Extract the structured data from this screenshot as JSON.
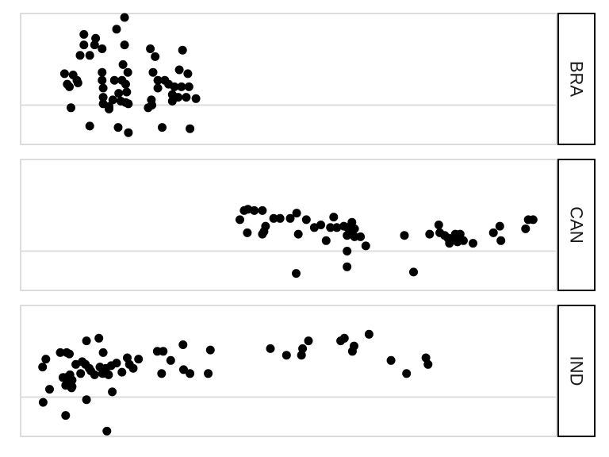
{
  "chart_data": {
    "type": "scatter",
    "title": "",
    "xlabel": "",
    "ylabel": "",
    "xlim": [
      0,
      100
    ],
    "ylim": [
      0,
      100
    ],
    "grid": true,
    "point_color": "#000000",
    "facets": [
      {
        "label": "BRA",
        "points": [
          {
            "x": 19.4,
            "y": 97
          },
          {
            "x": 17.9,
            "y": 88
          },
          {
            "x": 11.8,
            "y": 84
          },
          {
            "x": 14.0,
            "y": 81
          },
          {
            "x": 11.8,
            "y": 76
          },
          {
            "x": 13.8,
            "y": 76
          },
          {
            "x": 11.1,
            "y": 68
          },
          {
            "x": 12.9,
            "y": 68
          },
          {
            "x": 15.2,
            "y": 73
          },
          {
            "x": 19.4,
            "y": 76
          },
          {
            "x": 24.2,
            "y": 73
          },
          {
            "x": 30.2,
            "y": 72
          },
          {
            "x": 25.1,
            "y": 67
          },
          {
            "x": 8.2,
            "y": 54
          },
          {
            "x": 9.8,
            "y": 53
          },
          {
            "x": 10.5,
            "y": 49
          },
          {
            "x": 8.7,
            "y": 46
          },
          {
            "x": 9.1,
            "y": 44
          },
          {
            "x": 10.7,
            "y": 47
          },
          {
            "x": 15.2,
            "y": 55
          },
          {
            "x": 19.1,
            "y": 61
          },
          {
            "x": 20.0,
            "y": 55
          },
          {
            "x": 18.9,
            "y": 49
          },
          {
            "x": 17.5,
            "y": 49
          },
          {
            "x": 15.2,
            "y": 49
          },
          {
            "x": 15.4,
            "y": 43
          },
          {
            "x": 19.6,
            "y": 46
          },
          {
            "x": 24.7,
            "y": 55
          },
          {
            "x": 29.6,
            "y": 57
          },
          {
            "x": 31.2,
            "y": 54
          },
          {
            "x": 25.6,
            "y": 49
          },
          {
            "x": 26.9,
            "y": 49
          },
          {
            "x": 25.6,
            "y": 43
          },
          {
            "x": 27.6,
            "y": 46
          },
          {
            "x": 28.7,
            "y": 44
          },
          {
            "x": 30.0,
            "y": 44
          },
          {
            "x": 29.4,
            "y": 36
          },
          {
            "x": 31.4,
            "y": 44
          },
          {
            "x": 19.8,
            "y": 40
          },
          {
            "x": 18.3,
            "y": 39
          },
          {
            "x": 15.4,
            "y": 36
          },
          {
            "x": 15.4,
            "y": 31
          },
          {
            "x": 16.5,
            "y": 29
          },
          {
            "x": 16.5,
            "y": 27
          },
          {
            "x": 17.2,
            "y": 34
          },
          {
            "x": 18.7,
            "y": 33
          },
          {
            "x": 19.6,
            "y": 32
          },
          {
            "x": 20.1,
            "y": 31
          },
          {
            "x": 24.4,
            "y": 34
          },
          {
            "x": 24.5,
            "y": 30
          },
          {
            "x": 23.8,
            "y": 28
          },
          {
            "x": 28.3,
            "y": 33
          },
          {
            "x": 28.3,
            "y": 38
          },
          {
            "x": 30.9,
            "y": 36
          },
          {
            "x": 32.7,
            "y": 35
          },
          {
            "x": 9.4,
            "y": 28
          },
          {
            "x": 12.9,
            "y": 14
          },
          {
            "x": 18.2,
            "y": 13
          },
          {
            "x": 20.1,
            "y": 9
          },
          {
            "x": 26.4,
            "y": 13
          },
          {
            "x": 31.6,
            "y": 12
          }
        ]
      },
      {
        "label": "CAN",
        "points": [
          {
            "x": 41.7,
            "y": 61
          },
          {
            "x": 42.4,
            "y": 62
          },
          {
            "x": 43.6,
            "y": 61
          },
          {
            "x": 45.1,
            "y": 61
          },
          {
            "x": 40.9,
            "y": 54
          },
          {
            "x": 47.2,
            "y": 55
          },
          {
            "x": 48.4,
            "y": 55
          },
          {
            "x": 50.3,
            "y": 55
          },
          {
            "x": 51.5,
            "y": 59
          },
          {
            "x": 53.3,
            "y": 54
          },
          {
            "x": 56.0,
            "y": 50
          },
          {
            "x": 58.4,
            "y": 56
          },
          {
            "x": 57.8,
            "y": 48
          },
          {
            "x": 59.0,
            "y": 48
          },
          {
            "x": 61.8,
            "y": 52
          },
          {
            "x": 60.3,
            "y": 49
          },
          {
            "x": 61.0,
            "y": 48
          },
          {
            "x": 62.3,
            "y": 47
          },
          {
            "x": 61.4,
            "y": 44
          },
          {
            "x": 60.9,
            "y": 42
          },
          {
            "x": 62.3,
            "y": 41
          },
          {
            "x": 63.4,
            "y": 41
          },
          {
            "x": 57.0,
            "y": 38
          },
          {
            "x": 54.8,
            "y": 48
          },
          {
            "x": 51.8,
            "y": 43
          },
          {
            "x": 45.7,
            "y": 49
          },
          {
            "x": 45.1,
            "y": 43
          },
          {
            "x": 45.4,
            "y": 45
          },
          {
            "x": 42.3,
            "y": 44
          },
          {
            "x": 64.4,
            "y": 34
          },
          {
            "x": 60.9,
            "y": 30
          },
          {
            "x": 60.9,
            "y": 18
          },
          {
            "x": 51.4,
            "y": 13
          },
          {
            "x": 73.3,
            "y": 14
          },
          {
            "x": 71.6,
            "y": 42
          },
          {
            "x": 76.3,
            "y": 43
          },
          {
            "x": 78.0,
            "y": 50
          },
          {
            "x": 78.2,
            "y": 44
          },
          {
            "x": 79.1,
            "y": 42
          },
          {
            "x": 79.7,
            "y": 40
          },
          {
            "x": 80.6,
            "y": 40
          },
          {
            "x": 81.1,
            "y": 43
          },
          {
            "x": 82.0,
            "y": 43
          },
          {
            "x": 81.5,
            "y": 37
          },
          {
            "x": 82.6,
            "y": 38
          },
          {
            "x": 84.4,
            "y": 36
          },
          {
            "x": 80.0,
            "y": 36
          },
          {
            "x": 88.2,
            "y": 44
          },
          {
            "x": 89.4,
            "y": 49
          },
          {
            "x": 89.6,
            "y": 38
          },
          {
            "x": 94.2,
            "y": 47
          },
          {
            "x": 94.7,
            "y": 54
          },
          {
            "x": 95.6,
            "y": 54
          }
        ]
      },
      {
        "label": "IND",
        "points": [
          {
            "x": 4.7,
            "y": 59
          },
          {
            "x": 4.1,
            "y": 53
          },
          {
            "x": 7.4,
            "y": 64
          },
          {
            "x": 8.6,
            "y": 64
          },
          {
            "x": 9.1,
            "y": 63
          },
          {
            "x": 12.3,
            "y": 73
          },
          {
            "x": 14.6,
            "y": 75
          },
          {
            "x": 15.4,
            "y": 64
          },
          {
            "x": 11.5,
            "y": 57
          },
          {
            "x": 10.3,
            "y": 55
          },
          {
            "x": 12.1,
            "y": 55
          },
          {
            "x": 12.8,
            "y": 52
          },
          {
            "x": 14.8,
            "y": 53
          },
          {
            "x": 15.9,
            "y": 52
          },
          {
            "x": 16.9,
            "y": 54
          },
          {
            "x": 17.9,
            "y": 56
          },
          {
            "x": 19.9,
            "y": 60
          },
          {
            "x": 22.0,
            "y": 59
          },
          {
            "x": 20.3,
            "y": 55
          },
          {
            "x": 21.0,
            "y": 52
          },
          {
            "x": 18.9,
            "y": 49
          },
          {
            "x": 16.4,
            "y": 47
          },
          {
            "x": 15.3,
            "y": 48
          },
          {
            "x": 13.8,
            "y": 47
          },
          {
            "x": 13.1,
            "y": 50
          },
          {
            "x": 11.2,
            "y": 48
          },
          {
            "x": 9.2,
            "y": 47
          },
          {
            "x": 9.6,
            "y": 43
          },
          {
            "x": 8.5,
            "y": 45
          },
          {
            "x": 7.9,
            "y": 45
          },
          {
            "x": 8.4,
            "y": 39
          },
          {
            "x": 9.5,
            "y": 37
          },
          {
            "x": 9.6,
            "y": 38
          },
          {
            "x": 5.4,
            "y": 36
          },
          {
            "x": 12.3,
            "y": 28
          },
          {
            "x": 17.1,
            "y": 34
          },
          {
            "x": 4.2,
            "y": 26
          },
          {
            "x": 8.4,
            "y": 16
          },
          {
            "x": 16.1,
            "y": 4
          },
          {
            "x": 25.5,
            "y": 65
          },
          {
            "x": 26.6,
            "y": 65
          },
          {
            "x": 28.0,
            "y": 58
          },
          {
            "x": 30.3,
            "y": 70
          },
          {
            "x": 30.4,
            "y": 51
          },
          {
            "x": 31.6,
            "y": 48
          },
          {
            "x": 26.3,
            "y": 48
          },
          {
            "x": 35.4,
            "y": 66
          },
          {
            "x": 35.0,
            "y": 48
          },
          {
            "x": 46.6,
            "y": 67
          },
          {
            "x": 49.6,
            "y": 62
          },
          {
            "x": 52.6,
            "y": 67
          },
          {
            "x": 53.7,
            "y": 73
          },
          {
            "x": 52.4,
            "y": 62
          },
          {
            "x": 59.7,
            "y": 73
          },
          {
            "x": 60.4,
            "y": 75
          },
          {
            "x": 62.2,
            "y": 69
          },
          {
            "x": 61.9,
            "y": 65
          },
          {
            "x": 65.0,
            "y": 78
          },
          {
            "x": 69.1,
            "y": 58
          },
          {
            "x": 72.0,
            "y": 48
          },
          {
            "x": 75.6,
            "y": 60
          },
          {
            "x": 76.0,
            "y": 55
          }
        ]
      }
    ]
  }
}
